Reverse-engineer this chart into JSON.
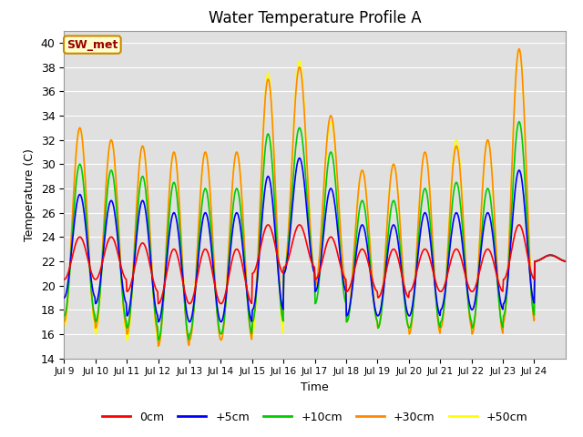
{
  "title": "Water Temperature Profile A",
  "xlabel": "Time",
  "ylabel": "Temperature (C)",
  "ylim": [
    14,
    41
  ],
  "yticks": [
    14,
    16,
    18,
    20,
    22,
    24,
    26,
    28,
    30,
    32,
    34,
    36,
    38,
    40
  ],
  "background_color": "#ffffff",
  "plot_bg_color": "#e0e0e0",
  "annotation_text": "SW_met",
  "annotation_bg": "#ffffcc",
  "annotation_border": "#cc8800",
  "annotation_text_color": "#990000",
  "series_colors": [
    "#ff0000",
    "#0000ff",
    "#00cc00",
    "#ff8800",
    "#ffff00"
  ],
  "series_lw": 1.2,
  "legend_items": [
    "0cm",
    "+5cm",
    "+10cm",
    "+30cm",
    "+50cm"
  ],
  "xtick_labels": [
    "Jul 9",
    "Jul 10",
    "Jul 11",
    "Jul 12",
    "Jul 13",
    "Jul 14",
    "Jul 15",
    "Jul 16",
    "Jul 17",
    "Jul 18",
    "Jul 19",
    "Jul 20",
    "Jul 21",
    "Jul 22",
    "Jul 23",
    "Jul 24"
  ],
  "n_days": 16,
  "peaks_0cm": [
    24.0,
    24.0,
    23.5,
    23.0,
    23.0,
    23.0,
    25.0,
    25.0,
    24.0,
    23.0,
    23.0,
    23.0,
    23.0,
    23.0,
    25.0,
    22.5
  ],
  "peaks_5cm": [
    27.5,
    27.0,
    27.0,
    26.0,
    26.0,
    26.0,
    29.0,
    30.5,
    28.0,
    25.0,
    25.0,
    26.0,
    26.0,
    26.0,
    29.5,
    22.5
  ],
  "peaks_10cm": [
    30.0,
    29.5,
    29.0,
    28.5,
    28.0,
    28.0,
    32.5,
    33.0,
    31.0,
    27.0,
    27.0,
    28.0,
    28.5,
    28.0,
    33.5,
    22.5
  ],
  "peaks_30cm": [
    33.0,
    32.0,
    31.5,
    31.0,
    31.0,
    31.0,
    37.0,
    38.0,
    34.0,
    29.5,
    30.0,
    31.0,
    31.5,
    32.0,
    39.5,
    22.5
  ],
  "peaks_50cm": [
    33.0,
    32.0,
    31.5,
    31.0,
    31.0,
    31.0,
    37.5,
    38.5,
    33.5,
    29.5,
    30.0,
    31.0,
    32.0,
    32.0,
    39.5,
    22.5
  ],
  "troughs_0cm": [
    20.5,
    20.5,
    19.5,
    18.5,
    18.5,
    18.5,
    21.0,
    21.5,
    20.5,
    19.5,
    19.0,
    19.5,
    19.5,
    19.5,
    20.5,
    22.0
  ],
  "troughs_5cm": [
    19.0,
    18.5,
    17.5,
    17.0,
    17.0,
    17.0,
    18.0,
    21.0,
    19.5,
    17.5,
    17.5,
    17.5,
    18.0,
    18.0,
    18.5,
    22.0
  ],
  "troughs_10cm": [
    17.5,
    17.0,
    16.5,
    15.5,
    16.0,
    16.0,
    17.0,
    21.0,
    18.5,
    17.0,
    16.5,
    16.5,
    17.0,
    16.5,
    17.5,
    22.0
  ],
  "troughs_30cm": [
    17.0,
    16.5,
    16.0,
    15.0,
    15.5,
    15.5,
    17.0,
    21.0,
    20.0,
    17.0,
    16.5,
    16.0,
    16.5,
    16.0,
    17.0,
    22.0
  ],
  "troughs_50cm": [
    16.5,
    16.0,
    15.5,
    15.0,
    15.5,
    15.5,
    16.0,
    21.0,
    20.0,
    17.0,
    16.5,
    16.0,
    16.5,
    16.0,
    17.0,
    22.0
  ]
}
